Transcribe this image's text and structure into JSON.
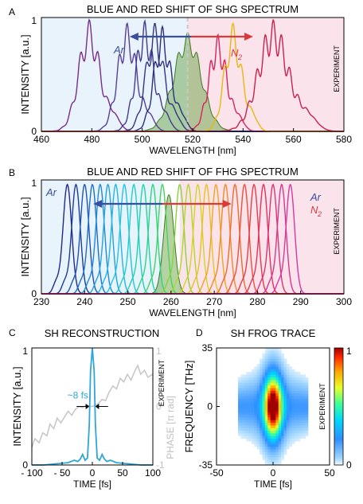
{
  "chart_data": [
    {
      "panel": "A",
      "type": "line",
      "title": "BLUE AND RED SHIFT OF SHG SPECTRUM",
      "xlabel": "WAVELENGTH [nm]",
      "ylabel": "INTENSITY [a.u.]",
      "xlim": [
        460,
        580
      ],
      "ylim": [
        0,
        1
      ],
      "x_ticks": [
        "460",
        "480",
        "500",
        "520",
        "540",
        "560",
        "580"
      ],
      "y_ticks": [
        "0",
        "1"
      ],
      "side_label": "EXPERIMENT",
      "annotations": {
        "blue_gas": "Ar",
        "red_gas": "N",
        "red_gas_sub": "2"
      },
      "regions": {
        "blue_end": 518,
        "red_start": 518,
        "center_line": 518,
        "arrow_from": 495,
        "arrow_to": 544
      },
      "reference_peak": {
        "center": 518,
        "width": 5.5,
        "height": 0.87,
        "fill": "#5c9b33",
        "opacity": 0.45
      },
      "series": [
        {
          "color": "#7b2c8a",
          "center": 479,
          "width": 4.2,
          "height": 0.98
        },
        {
          "color": "#5b3e97",
          "center": 494,
          "width": 3.8,
          "height": 0.95
        },
        {
          "color": "#463a8d",
          "center": 501,
          "width": 3.6,
          "height": 0.97
        },
        {
          "color": "#353580",
          "center": 505,
          "width": 3.6,
          "height": 0.95
        },
        {
          "color": "#2c2f7a",
          "center": 508,
          "width": 3.4,
          "height": 0.92
        },
        {
          "color": "#d6245c",
          "center": 530,
          "width": 3.6,
          "height": 0.85
        },
        {
          "color": "#e8b80f",
          "center": 536,
          "width": 3.4,
          "height": 0.95
        },
        {
          "color": "#c8224f",
          "center": 552,
          "width": 6.0,
          "height": 0.98
        }
      ]
    },
    {
      "panel": "B",
      "type": "line",
      "title": "BLUE AND RED SHIFT OF FHG SPECTRUM",
      "xlabel": "WAVELENGTH [nm]",
      "ylabel": "INTENSITY [a.u.]",
      "xlim": [
        230,
        300
      ],
      "ylim": [
        0,
        1
      ],
      "x_ticks": [
        "230",
        "240",
        "250",
        "260",
        "270",
        "280",
        "290",
        "300"
      ],
      "y_ticks": [
        "0",
        "1"
      ],
      "side_label": "EXPERIMENT",
      "annotations": {
        "blue_gas": "Ar",
        "legend_ar": "Ar",
        "legend_n": "N",
        "legend_n_sub": "2"
      },
      "regions": {
        "blue_end": 258,
        "red_start": 262,
        "arrow_from": 242,
        "arrow_to": 274
      },
      "reference_peak": {
        "center": 259.5,
        "width": 1.2,
        "height": 0.87,
        "fill": "#5c9b33",
        "opacity": 0.45
      },
      "series": [
        {
          "color": "#1f2a8a",
          "center": 236.0,
          "width": 1.0,
          "height": 0.96
        },
        {
          "color": "#1d3c9c",
          "center": 238.0,
          "width": 1.0,
          "height": 0.96
        },
        {
          "color": "#1e55b3",
          "center": 240.0,
          "width": 1.0,
          "height": 0.96
        },
        {
          "color": "#1f70c8",
          "center": 241.8,
          "width": 1.0,
          "height": 0.96
        },
        {
          "color": "#1f8ad6",
          "center": 243.6,
          "width": 1.0,
          "height": 0.96
        },
        {
          "color": "#22a2e0",
          "center": 245.4,
          "width": 1.0,
          "height": 0.96
        },
        {
          "color": "#23b6e6",
          "center": 247.2,
          "width": 1.0,
          "height": 0.96
        },
        {
          "color": "#20c6e0",
          "center": 249.2,
          "width": 1.0,
          "height": 0.96
        },
        {
          "color": "#1fd0c6",
          "center": 251.4,
          "width": 1.0,
          "height": 0.96
        },
        {
          "color": "#22d3a4",
          "center": 253.6,
          "width": 1.0,
          "height": 0.96
        },
        {
          "color": "#2dd47f",
          "center": 255.8,
          "width": 1.0,
          "height": 0.96
        },
        {
          "color": "#49d25c",
          "center": 258.0,
          "width": 1.0,
          "height": 0.96
        },
        {
          "color": "#89d23a",
          "center": 262.0,
          "width": 1.0,
          "height": 0.96
        },
        {
          "color": "#b4d52a",
          "center": 264.0,
          "width": 1.0,
          "height": 0.96
        },
        {
          "color": "#d4d420",
          "center": 266.2,
          "width": 1.0,
          "height": 0.96
        },
        {
          "color": "#e8c21e",
          "center": 268.2,
          "width": 1.0,
          "height": 0.96
        },
        {
          "color": "#f0a51f",
          "center": 270.4,
          "width": 1.0,
          "height": 0.96
        },
        {
          "color": "#f08a25",
          "center": 272.6,
          "width": 1.0,
          "height": 0.96
        },
        {
          "color": "#ec6c2c",
          "center": 274.8,
          "width": 1.0,
          "height": 0.96
        },
        {
          "color": "#e85238",
          "center": 277.0,
          "width": 1.0,
          "height": 0.96
        },
        {
          "color": "#e43c48",
          "center": 279.2,
          "width": 1.0,
          "height": 0.96
        },
        {
          "color": "#e0345e",
          "center": 281.4,
          "width": 1.0,
          "height": 0.96
        },
        {
          "color": "#dc3378",
          "center": 283.6,
          "width": 1.0,
          "height": 0.96
        },
        {
          "color": "#d7368f",
          "center": 285.6,
          "width": 1.0,
          "height": 0.96
        },
        {
          "color": "#d23aa4",
          "center": 287.6,
          "width": 1.0,
          "height": 0.96
        }
      ]
    },
    {
      "panel": "C",
      "type": "line",
      "title": "SH RECONSTRUCTION",
      "xlabel": "TIME [fs]",
      "ylabel": "INTENSITY [a.u.]",
      "ylabel_right": "PHASE [π rad]",
      "xlim": [
        -100,
        100
      ],
      "ylim": [
        0,
        1
      ],
      "ylim_right": [
        -1,
        1
      ],
      "x_ticks": [
        "- 100",
        "- 50",
        "0",
        "50",
        "100"
      ],
      "y_ticks": [
        "0",
        "1"
      ],
      "y_ticks_right": [
        "-1",
        "0",
        "1"
      ],
      "side_label": "EXPERIMENT",
      "annotation": "~8 fs",
      "series": [
        {
          "name": "intensity",
          "color": "#2ea6d6",
          "x": [
            -100,
            -80,
            -60,
            -40,
            -30,
            -24,
            -20,
            -16,
            -12,
            -8,
            -5,
            -3,
            0,
            3,
            5,
            8,
            12,
            16,
            20,
            24,
            30,
            40,
            60,
            80,
            100
          ],
          "y": [
            0.0,
            0.0,
            0.01,
            0.02,
            0.04,
            0.03,
            0.05,
            0.09,
            0.04,
            0.06,
            0.35,
            0.8,
            1.0,
            0.8,
            0.35,
            0.06,
            0.04,
            0.09,
            0.05,
            0.03,
            0.04,
            0.02,
            0.01,
            0.0,
            0.0
          ]
        },
        {
          "name": "phase",
          "color": "#c8c8c8",
          "x": [
            -100,
            -95,
            -88,
            -82,
            -75,
            -70,
            -64,
            -58,
            -52,
            -46,
            -40,
            -34,
            -28,
            -22,
            -16,
            -10,
            -5,
            0,
            5,
            10,
            16,
            22,
            28,
            34,
            40,
            46,
            52,
            58,
            64,
            70,
            75,
            80,
            86,
            92,
            100
          ],
          "y": [
            -0.7,
            -0.55,
            -0.62,
            -0.45,
            -0.5,
            -0.3,
            -0.38,
            -0.2,
            -0.28,
            -0.18,
            -0.08,
            -0.15,
            -0.05,
            0.0,
            -0.02,
            0.02,
            0.0,
            0.0,
            0.02,
            0.05,
            0.12,
            0.1,
            0.25,
            0.35,
            0.3,
            0.48,
            0.42,
            0.55,
            0.45,
            0.6,
            0.7,
            0.55,
            0.62,
            0.5,
            0.55
          ]
        }
      ]
    },
    {
      "panel": "D",
      "type": "heatmap",
      "title": "SH FROG TRACE",
      "xlabel": "TIME [fs]",
      "ylabel": "FREQUENCY [THz]",
      "xlim": [
        -50,
        50
      ],
      "ylim": [
        -35,
        35
      ],
      "x_ticks": [
        "-50",
        "0",
        "50"
      ],
      "y_ticks": [
        "-35",
        "0",
        "35"
      ],
      "colorbar_ticks": [
        "0",
        "1"
      ],
      "colorbar_range": [
        0,
        1
      ],
      "side_label": "EXPERIMENT",
      "peak": {
        "time": 0,
        "frequency": 0,
        "time_width": 5.5,
        "frequency_width": 13
      },
      "envelope_half_width_fs": 30
    }
  ]
}
